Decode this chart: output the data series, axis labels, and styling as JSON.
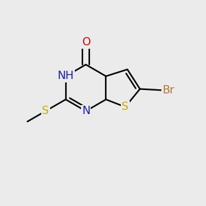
{
  "background_color": "#ebebeb",
  "bond_color": "#000000",
  "atoms": {
    "O": {
      "label": "O",
      "color": "#cc0000",
      "fontsize": 13
    },
    "NH": {
      "label": "NH",
      "color": "#1a1aaa",
      "fontsize": 13
    },
    "N": {
      "label": "N",
      "color": "#1a1aaa",
      "fontsize": 13
    },
    "S_thio": {
      "label": "S",
      "color": "#ccaa00",
      "fontsize": 13
    },
    "S_meth": {
      "label": "S",
      "color": "#ccaa00",
      "fontsize": 13
    },
    "Br": {
      "label": "Br",
      "color": "#b87333",
      "fontsize": 13
    }
  }
}
